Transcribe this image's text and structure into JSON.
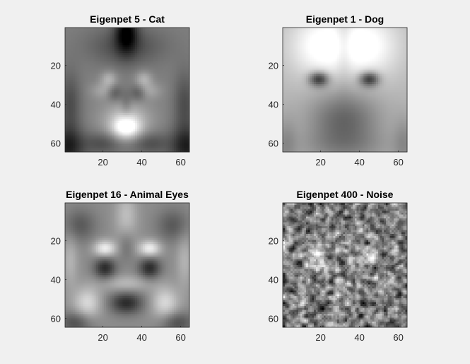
{
  "figure": {
    "background": "#f0f0f0",
    "axis_color": "#262626"
  },
  "chart_data": [
    {
      "type": "heatmap",
      "title": "Eigenpet 5 - Cat",
      "colormap": "gray",
      "xlim": [
        0.5,
        64.5
      ],
      "ylim": [
        0.5,
        64.5
      ],
      "y_reversed": true,
      "xticks": [
        20,
        40,
        60
      ],
      "yticks": [
        20,
        40,
        60
      ],
      "features": [
        {
          "x": 32,
          "y": 2,
          "sx": 4,
          "sy": 8,
          "a": -0.45
        },
        {
          "x": 32,
          "y": 10,
          "sx": 14,
          "sy": 7,
          "a": -0.2
        },
        {
          "x": 32,
          "y": 52,
          "sx": 5,
          "sy": 4,
          "a": 0.45
        },
        {
          "x": 32,
          "y": 48,
          "sx": 9,
          "sy": 7,
          "a": 0.25
        },
        {
          "x": 23,
          "y": 27,
          "sx": 3,
          "sy": 3,
          "a": 0.2
        },
        {
          "x": 41,
          "y": 27,
          "sx": 3,
          "sy": 3,
          "a": 0.2
        },
        {
          "x": 21,
          "y": 33,
          "sx": 5,
          "sy": 3,
          "a": 0.15
        },
        {
          "x": 43,
          "y": 33,
          "sx": 5,
          "sy": 3,
          "a": 0.15
        },
        {
          "x": 26,
          "y": 34,
          "sx": 3,
          "sy": 3,
          "a": -0.22
        },
        {
          "x": 38,
          "y": 34,
          "sx": 3,
          "sy": 3,
          "a": -0.22
        },
        {
          "x": 32,
          "y": 40,
          "sx": 2,
          "sy": 5,
          "a": -0.12
        },
        {
          "x": 2,
          "y": 62,
          "sx": 6,
          "sy": 7,
          "a": -0.35
        },
        {
          "x": 63,
          "y": 62,
          "sx": 6,
          "sy": 7,
          "a": -0.35
        },
        {
          "x": 3,
          "y": 40,
          "sx": 4,
          "sy": 12,
          "a": -0.2
        },
        {
          "x": 62,
          "y": 40,
          "sx": 4,
          "sy": 12,
          "a": -0.2
        },
        {
          "x": 20,
          "y": 60,
          "sx": 7,
          "sy": 4,
          "a": -0.2
        },
        {
          "x": 44,
          "y": 60,
          "sx": 7,
          "sy": 4,
          "a": -0.2
        }
      ],
      "base": 0.5
    },
    {
      "type": "heatmap",
      "title": "Eigenpet 1 - Dog",
      "colormap": "gray",
      "xlim": [
        0.5,
        64.5
      ],
      "ylim": [
        0.5,
        64.5
      ],
      "y_reversed": true,
      "xticks": [
        20,
        40,
        60
      ],
      "yticks": [
        20,
        40,
        60
      ],
      "features": [
        {
          "x": 20,
          "y": 10,
          "sx": 12,
          "sy": 12,
          "a": 0.3
        },
        {
          "x": 44,
          "y": 10,
          "sx": 12,
          "sy": 12,
          "a": 0.3
        },
        {
          "x": 32,
          "y": 8,
          "sx": 3,
          "sy": 14,
          "a": -0.12
        },
        {
          "x": 19,
          "y": 27,
          "sx": 3.6,
          "sy": 2.7,
          "a": -0.55
        },
        {
          "x": 45,
          "y": 27,
          "sx": 3.6,
          "sy": 2.7,
          "a": -0.55
        },
        {
          "x": 32,
          "y": 48,
          "sx": 13,
          "sy": 11,
          "a": -0.32
        },
        {
          "x": 32,
          "y": 62,
          "sx": 20,
          "sy": 6,
          "a": -0.12
        },
        {
          "x": 2,
          "y": 60,
          "sx": 4,
          "sy": 10,
          "a": -0.15
        },
        {
          "x": 63,
          "y": 60,
          "sx": 4,
          "sy": 10,
          "a": -0.15
        }
      ],
      "base": 0.72
    },
    {
      "type": "heatmap",
      "title": "Eigenpet 16 - Animal Eyes",
      "colormap": "gray",
      "xlim": [
        0.5,
        64.5
      ],
      "ylim": [
        0.5,
        64.5
      ],
      "y_reversed": true,
      "xticks": [
        20,
        40,
        60
      ],
      "yticks": [
        20,
        40,
        60
      ],
      "features": [
        {
          "x": 21,
          "y": 24,
          "sx": 4,
          "sy": 3,
          "a": 0.4
        },
        {
          "x": 44,
          "y": 24,
          "sx": 4,
          "sy": 3,
          "a": 0.4
        },
        {
          "x": 21,
          "y": 34,
          "sx": 4,
          "sy": 4,
          "a": -0.38
        },
        {
          "x": 44,
          "y": 34,
          "sx": 4,
          "sy": 4,
          "a": -0.38
        },
        {
          "x": 32,
          "y": 52,
          "sx": 6,
          "sy": 4,
          "a": -0.38
        },
        {
          "x": 32,
          "y": 8,
          "sx": 4,
          "sy": 10,
          "a": 0.2
        },
        {
          "x": 32,
          "y": 22,
          "sx": 3,
          "sy": 6,
          "a": -0.15
        },
        {
          "x": 12,
          "y": 52,
          "sx": 5,
          "sy": 6,
          "a": 0.3
        },
        {
          "x": 52,
          "y": 52,
          "sx": 5,
          "sy": 6,
          "a": 0.3
        },
        {
          "x": 32,
          "y": 42,
          "sx": 9,
          "sy": 3,
          "a": 0.18
        },
        {
          "x": 8,
          "y": 12,
          "sx": 6,
          "sy": 6,
          "a": -0.2
        },
        {
          "x": 56,
          "y": 12,
          "sx": 6,
          "sy": 6,
          "a": -0.2
        },
        {
          "x": 3,
          "y": 30,
          "sx": 3,
          "sy": 10,
          "a": 0.15
        },
        {
          "x": 62,
          "y": 30,
          "sx": 3,
          "sy": 10,
          "a": 0.15
        },
        {
          "x": 6,
          "y": 62,
          "sx": 6,
          "sy": 4,
          "a": -0.25
        },
        {
          "x": 58,
          "y": 62,
          "sx": 6,
          "sy": 4,
          "a": -0.25
        }
      ],
      "base": 0.55
    },
    {
      "type": "heatmap",
      "title": "Eigenpet 400 - Noise",
      "colormap": "gray",
      "xlim": [
        0.5,
        64.5
      ],
      "ylim": [
        0.5,
        64.5
      ],
      "y_reversed": true,
      "xticks": [
        20,
        40,
        60
      ],
      "yticks": [
        20,
        40,
        60
      ],
      "noise": true,
      "features": [
        {
          "x": 18,
          "y": 28,
          "sx": 3,
          "sy": 3,
          "a": 0.5
        },
        {
          "x": 45,
          "y": 27,
          "sx": 3,
          "sy": 3,
          "a": 0.35
        }
      ],
      "base": 0.55
    }
  ]
}
